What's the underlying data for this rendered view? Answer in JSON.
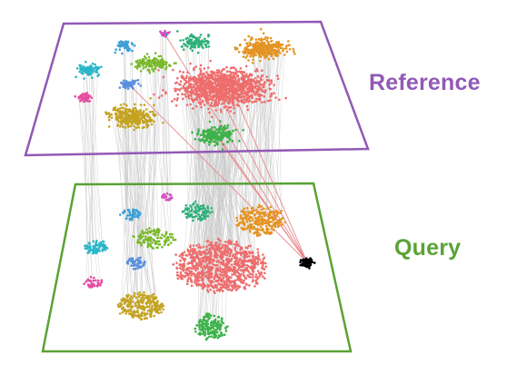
{
  "labels": {
    "reference": "Reference",
    "query": "Query"
  },
  "colors": {
    "reference": "#9159b5",
    "query": "#5aa236",
    "link_line": "#c8c8c8",
    "query_link_line": "#e88888",
    "query_point": "#000000"
  },
  "clusters": [
    {
      "name": "cyan-small",
      "color": "#3fa0d8",
      "shape": "ellipse"
    },
    {
      "name": "magenta-tiny",
      "color": "#d34fc4",
      "shape": "ellipse"
    },
    {
      "name": "teal-green",
      "color": "#2fb07a",
      "shape": "ellipse"
    },
    {
      "name": "orange",
      "color": "#e49423",
      "shape": "ellipse"
    },
    {
      "name": "turquoise",
      "color": "#29b6c9",
      "shape": "ellipse"
    },
    {
      "name": "lime",
      "color": "#7ab92c",
      "shape": "ellipse"
    },
    {
      "name": "blue",
      "color": "#5b8fde",
      "shape": "ellipse"
    },
    {
      "name": "pink",
      "color": "#e64ca0",
      "shape": "ellipse"
    },
    {
      "name": "salmon-large",
      "color": "#ee6d6d",
      "shape": "ellipse"
    },
    {
      "name": "olive",
      "color": "#c4a321",
      "shape": "ellipse"
    },
    {
      "name": "green",
      "color": "#3db24a",
      "shape": "ellipse"
    }
  ]
}
